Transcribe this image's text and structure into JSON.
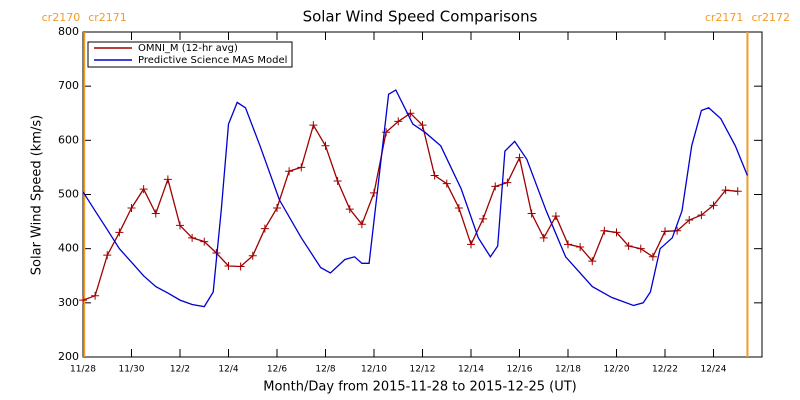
{
  "chart_data": {
    "type": "line",
    "title": "Solar Wind Speed Comparisons",
    "x_label": "Month/Day from 2015-11-28 to 2015-12-25 (UT)",
    "y_label": "Solar Wind Speed (km/s)",
    "xlim": [
      0,
      28
    ],
    "ylim": [
      200,
      800
    ],
    "xticks": [
      {
        "value": 0,
        "label": "11/28"
      },
      {
        "value": 2,
        "label": "11/30"
      },
      {
        "value": 4,
        "label": "12/2"
      },
      {
        "value": 6,
        "label": "12/4"
      },
      {
        "value": 8,
        "label": "12/6"
      },
      {
        "value": 10,
        "label": "12/8"
      },
      {
        "value": 12,
        "label": "12/10"
      },
      {
        "value": 14,
        "label": "12/12"
      },
      {
        "value": 16,
        "label": "12/14"
      },
      {
        "value": 18,
        "label": "12/16"
      },
      {
        "value": 20,
        "label": "12/18"
      },
      {
        "value": 22,
        "label": "12/20"
      },
      {
        "value": 24,
        "label": "12/22"
      },
      {
        "value": 26,
        "label": "12/24"
      }
    ],
    "yticks": [
      200,
      300,
      400,
      500,
      600,
      700,
      800
    ],
    "legend": "upper left",
    "boundary_color": "#f39c26",
    "boundaries": [
      {
        "x": 0.05,
        "labels": [
          "cr2170",
          "cr2171"
        ]
      },
      {
        "x": 27.4,
        "labels": [
          "cr2171",
          "cr2172"
        ]
      }
    ],
    "series": [
      {
        "name": "OMNI_M (12-hr avg)",
        "color": "#a00000",
        "markers": true,
        "x": [
          0,
          0.5,
          1,
          1.5,
          2,
          2.5,
          3,
          3.5,
          4,
          4.5,
          5,
          5.5,
          6,
          6.5,
          7,
          7.5,
          8,
          8.5,
          9,
          9.5,
          10,
          10.5,
          11,
          11.5,
          12,
          12.5,
          13,
          13.5,
          14,
          14.5,
          15,
          15.5,
          16,
          16.5,
          17,
          17.5,
          18,
          18.5,
          19,
          19.5,
          20,
          20.5,
          21,
          21.5,
          22,
          22.5,
          23,
          23.5,
          24,
          24.5,
          25,
          25.5,
          26,
          26.5,
          27
        ],
        "values": [
          305,
          313,
          388,
          430,
          475,
          510,
          465,
          528,
          443,
          420,
          413,
          392,
          368,
          367,
          387,
          437,
          475,
          543,
          550,
          628,
          590,
          525,
          473,
          445,
          503,
          615,
          635,
          650,
          628,
          535,
          520,
          475,
          408,
          455,
          515,
          522,
          568,
          465,
          420,
          460,
          408,
          403,
          377,
          433,
          430,
          405,
          400,
          385,
          432,
          433,
          453,
          462,
          480,
          508,
          506
        ]
      },
      {
        "name": "Predictive Science MAS Model",
        "color": "#0000d0",
        "markers": false,
        "x": [
          0,
          0.5,
          1,
          1.5,
          2,
          2.5,
          3,
          3.5,
          4,
          4.5,
          5,
          5.37,
          5.7,
          6,
          6.36,
          6.7,
          7.3,
          8.1,
          9,
          9.8,
          10.2,
          10.8,
          11.2,
          11.5,
          11.8,
          12.6,
          12.9,
          13.6,
          14.1,
          14.75,
          15.6,
          16.3,
          16.8,
          17.1,
          17.4,
          17.8,
          18.3,
          19.1,
          19.9,
          21,
          21.8,
          22.7,
          23.1,
          23.4,
          23.8,
          24.3,
          24.7,
          25.1,
          25.5,
          25.8,
          26.3,
          26.9,
          27.4
        ],
        "values": [
          505,
          470,
          435,
          400,
          375,
          350,
          330,
          318,
          305,
          297,
          293,
          320,
          470,
          630,
          670,
          660,
          590,
          490,
          420,
          365,
          355,
          380,
          385,
          373,
          373,
          685,
          693,
          630,
          615,
          590,
          510,
          420,
          385,
          405,
          580,
          598,
          565,
          470,
          385,
          330,
          310,
          295,
          300,
          320,
          400,
          420,
          470,
          590,
          655,
          660,
          640,
          590,
          535
        ]
      }
    ]
  }
}
